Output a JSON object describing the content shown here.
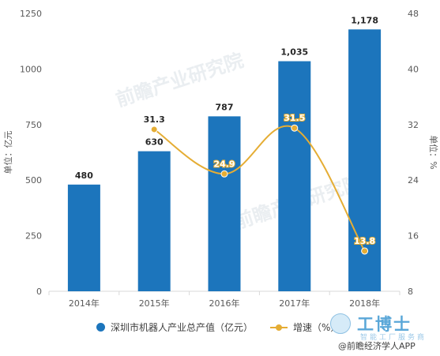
{
  "chart_data": {
    "type": "bar",
    "categories": [
      "2014年",
      "2015年",
      "2016年",
      "2017年",
      "2018年"
    ],
    "series": [
      {
        "name": "深圳市机器人产业总产值（亿元）",
        "type": "bar",
        "axis": "left",
        "values": [
          480,
          630,
          787,
          1035,
          1178
        ],
        "labels": [
          "480",
          "630",
          "787",
          "1,035",
          "1,178"
        ]
      },
      {
        "name": "增速（%）",
        "type": "line",
        "axis": "right",
        "values": [
          null,
          31.3,
          24.9,
          31.5,
          13.8
        ],
        "labels": [
          "",
          "31.3",
          "24.9",
          "31.5",
          "13.8"
        ]
      }
    ],
    "ylabel_left": "单位：亿元",
    "ylabel_right": "单位：%",
    "ylim_left": [
      0,
      1250
    ],
    "ylim_right": [
      8,
      48
    ],
    "yticks_left": [
      "0",
      "250",
      "500",
      "750",
      "1000",
      "1250"
    ],
    "yticks_right": [
      "8",
      "16",
      "24",
      "32",
      "40",
      "48"
    ],
    "colors": {
      "bar": "#1c75bc",
      "line": "#e5ad34",
      "axis": "#d9d9d9"
    },
    "grid": false,
    "legend_position": "bottom"
  },
  "legend": {
    "bar_label": "深圳市机器人产业总产值（亿元）",
    "line_label": "增速（%）"
  },
  "watermark": {
    "text": "前瞻产业研究院"
  },
  "brand": {
    "mark": "工博士",
    "sub": "智能工厂服务商"
  },
  "source": "@前瞻经济学人APP"
}
